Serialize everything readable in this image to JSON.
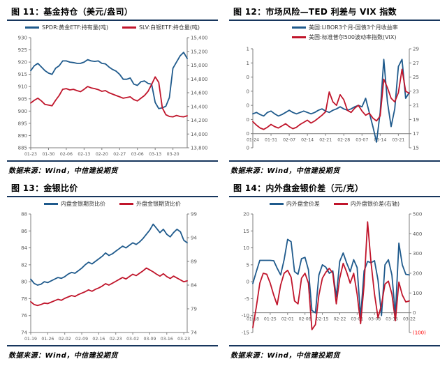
{
  "source_note": "数据来源：Wind，中信建投期货",
  "colors": {
    "blue": "#1f5a8c",
    "red": "#c0152b",
    "rule_navy": "#17365d",
    "axis_line": "#7f7f7f",
    "tick_text": "#595959",
    "negative_tick": "#ff0000"
  },
  "chart_data": [
    {
      "type": "line",
      "title": "图  11：基金持仓（美元/盎司）",
      "legend_position": "top",
      "x_labels": [
        "01-23",
        "01-30",
        "02-06",
        "02-13",
        "02-20",
        "02-27",
        "03-06",
        "03-13",
        "03-20"
      ],
      "label_every": 5,
      "left_axis": {
        "ticks": [
          "930",
          "925",
          "920",
          "915",
          "910",
          "905",
          "900",
          "895",
          "890",
          "885"
        ],
        "max": 930,
        "min": 885
      },
      "right_axis": {
        "ticks": [
          "15,400",
          "15,200",
          "15,000",
          "14,800",
          "14,600",
          "14,400",
          "14,200",
          "14,000",
          "13,800"
        ],
        "max": 15400,
        "min": 13800
      },
      "axis_line": {
        "axis": "left",
        "value": 885
      },
      "series": [
        {
          "name": "SPDR:黄金ETF:持有量(吨)",
          "axis": "left",
          "color": "blue",
          "values": [
            916.5,
            918.5,
            919.5,
            918,
            916.5,
            915.5,
            915,
            917.5,
            918.5,
            920.5,
            920.5,
            920,
            919.8,
            919.5,
            919.5,
            920,
            921,
            920.5,
            920.3,
            920.5,
            919.5,
            919.3,
            918,
            917,
            916.3,
            915,
            913,
            913,
            913.5,
            911,
            910.5,
            912,
            912.3,
            911.3,
            911,
            903.5,
            901,
            901.3,
            902,
            905.5,
            917.5,
            920,
            922.5,
            924,
            921.5
          ]
        },
        {
          "name": "SLV:白银ETF:持仓量(吨)",
          "axis": "right",
          "color": "red",
          "values": [
            14450,
            14490,
            14520,
            14480,
            14430,
            14420,
            14410,
            14490,
            14560,
            14650,
            14660,
            14640,
            14650,
            14630,
            14615,
            14650,
            14690,
            14670,
            14660,
            14645,
            14620,
            14630,
            14600,
            14580,
            14560,
            14540,
            14520,
            14530,
            14540,
            14500,
            14480,
            14520,
            14560,
            14620,
            14720,
            14830,
            14750,
            14380,
            14280,
            14255,
            14250,
            14270,
            14255,
            14250,
            14265
          ]
        }
      ]
    },
    {
      "type": "line",
      "title": "图  12：市场风险—TED 利差与 VIX 指数",
      "legend_position": "top",
      "x_labels": [
        "01-24",
        "01-31",
        "02-07",
        "02-14",
        "02-21",
        "02-28",
        "03-07",
        "03-14",
        "03-21"
      ],
      "label_every": 5,
      "left_axis": {
        "ticks": [
          "1",
          "1",
          "0",
          "0",
          "0",
          "0",
          "0",
          "0"
        ],
        "max": 1.2,
        "min": -0.2
      },
      "right_axis": {
        "ticks": [
          "29",
          "27",
          "25",
          "23",
          "21",
          "19",
          "17",
          "15"
        ],
        "max": 29,
        "min": 15
      },
      "axis_line": {
        "axis": "left",
        "value": 0
      },
      "series": [
        {
          "name": "美国:LIBOR3个月-国债3个月收益率",
          "axis": "left",
          "color": "blue",
          "values": [
            0.28,
            0.3,
            0.27,
            0.25,
            0.3,
            0.32,
            0.28,
            0.25,
            0.27,
            0.3,
            0.33,
            0.3,
            0.28,
            0.3,
            0.32,
            0.3,
            0.28,
            0.3,
            0.33,
            0.35,
            0.32,
            0.3,
            0.33,
            0.35,
            0.38,
            0.35,
            0.33,
            0.35,
            0.38,
            0.4,
            0.38,
            0.5,
            0.3,
            0.1,
            -0.12,
            0.3,
            1.05,
            0.45,
            0.1,
            0.35,
            0.95,
            1.05,
            0.5,
            0.58
          ]
        },
        {
          "name": "美国:标准普尔500波动率指数(VIX)",
          "axis": "right",
          "color": "red",
          "values": [
            18.7,
            18.2,
            17.8,
            17.6,
            17.9,
            18.3,
            18,
            17.8,
            18.1,
            18.4,
            18,
            17.7,
            17.9,
            18.3,
            18.6,
            18.9,
            18.5,
            18.8,
            19.2,
            19.6,
            20.1,
            22.9,
            21.5,
            21,
            22.5,
            21.8,
            20.3,
            20,
            20.6,
            21,
            20.2,
            19.6,
            19.9,
            19.2,
            18.8,
            19.5,
            24.7,
            23.5,
            22,
            21.5,
            22.8,
            26.1,
            23,
            22.7
          ]
        }
      ]
    },
    {
      "type": "line",
      "title": "图  13：金银比价",
      "legend_position": "top",
      "x_labels": [
        "01-19",
        "01-26",
        "02-02",
        "02-09",
        "02-16",
        "02-23",
        "03-02",
        "03-09",
        "03-16",
        "03-23"
      ],
      "label_every": 5,
      "left_axis": {
        "ticks": [
          "88",
          "86",
          "84",
          "82",
          "80",
          "78",
          "76",
          "74"
        ],
        "max": 88,
        "min": 74
      },
      "right_axis": {
        "ticks": [
          "99",
          "94",
          "89",
          "84",
          "79",
          "74"
        ],
        "max": 99,
        "min": 74
      },
      "axis_line": {
        "axis": "left",
        "value": 74
      },
      "series": [
        {
          "name": "内盘金银期货比价",
          "axis": "left",
          "color": "blue",
          "values": [
            80.3,
            79.8,
            79.6,
            79.7,
            80,
            79.9,
            80.1,
            80.3,
            80.5,
            80.4,
            80.6,
            80.9,
            81.1,
            81,
            81.3,
            81.6,
            82,
            82.3,
            82.1,
            82.4,
            82.7,
            83,
            83.4,
            83.1,
            83.3,
            83.6,
            83.9,
            84.2,
            84,
            84.3,
            84.6,
            84.4,
            84.7,
            85.1,
            85.6,
            86.1,
            86.8,
            86.3,
            85.8,
            86.2,
            85.6,
            85.3,
            85.8,
            86.2,
            85.9,
            84.9,
            84.6
          ]
        },
        {
          "name": "外盘金银期货比价",
          "axis": "right",
          "color": "red",
          "values": [
            80.5,
            79.9,
            79.7,
            79.9,
            80.2,
            80.1,
            80.4,
            80.7,
            81,
            80.8,
            81.2,
            81.5,
            81.8,
            81.6,
            82,
            82.3,
            82.6,
            83,
            82.7,
            83.1,
            83.4,
            83.8,
            84.3,
            84,
            84.4,
            84.8,
            85.2,
            85.6,
            85.3,
            85.8,
            86.3,
            86,
            86.5,
            87,
            87.6,
            87.2,
            86.8,
            86.3,
            85.9,
            86.4,
            85.8,
            85.4,
            85.9,
            85.5,
            85.1,
            84.7,
            84.9
          ]
        }
      ]
    },
    {
      "type": "line",
      "title": "图  14：内外盘金银价差（元/克）",
      "legend_position": "top",
      "x_labels": [
        "01-18",
        "01-25",
        "02-01",
        "02-08",
        "02-15",
        "02-22",
        "03-01",
        "03-08",
        "03-15",
        "03-22"
      ],
      "label_every": 5,
      "left_axis": {
        "ticks": [
          "20",
          "15",
          "10",
          "5",
          "0",
          "-5",
          "-10",
          "-15"
        ],
        "max": 20,
        "min": -15
      },
      "right_axis": {
        "ticks": [
          "500",
          "400",
          "300",
          "200",
          "100",
          "0",
          "(100)"
        ],
        "max": 500,
        "min": -100
      },
      "axis_line": {
        "axis": "right",
        "value": 0
      },
      "series": [
        {
          "name": "内外盘金价差",
          "axis": "left",
          "color": "blue",
          "values": [
            -0.5,
            3,
            6.3,
            6.3,
            6.3,
            6.3,
            6.2,
            4,
            2,
            6.5,
            12.5,
            11.8,
            3,
            2.2,
            6.8,
            7.2,
            3.5,
            -8.5,
            -9.2,
            2,
            5,
            4.3,
            2.5,
            3.2,
            -4.5,
            6,
            8.5,
            5.5,
            3,
            6.5,
            4.2,
            -10.5,
            3.2,
            6,
            5.6,
            6.2,
            0.5,
            -10,
            5,
            6.5,
            2,
            -9.8,
            11.4,
            5,
            2.2,
            2
          ]
        },
        {
          "name": "内外盘银价差(右轴)",
          "axis": "right",
          "color": "red",
          "values": [
            -75,
            30,
            150,
            200,
            195,
            150,
            90,
            40,
            140,
            200,
            215,
            180,
            60,
            45,
            175,
            200,
            150,
            -85,
            -60,
            90,
            175,
            205,
            225,
            200,
            45,
            175,
            250,
            205,
            150,
            200,
            95,
            -55,
            140,
            460,
            255,
            95,
            -25,
            40,
            145,
            160,
            95,
            -40,
            155,
            90,
            55,
            60
          ]
        }
      ]
    }
  ]
}
